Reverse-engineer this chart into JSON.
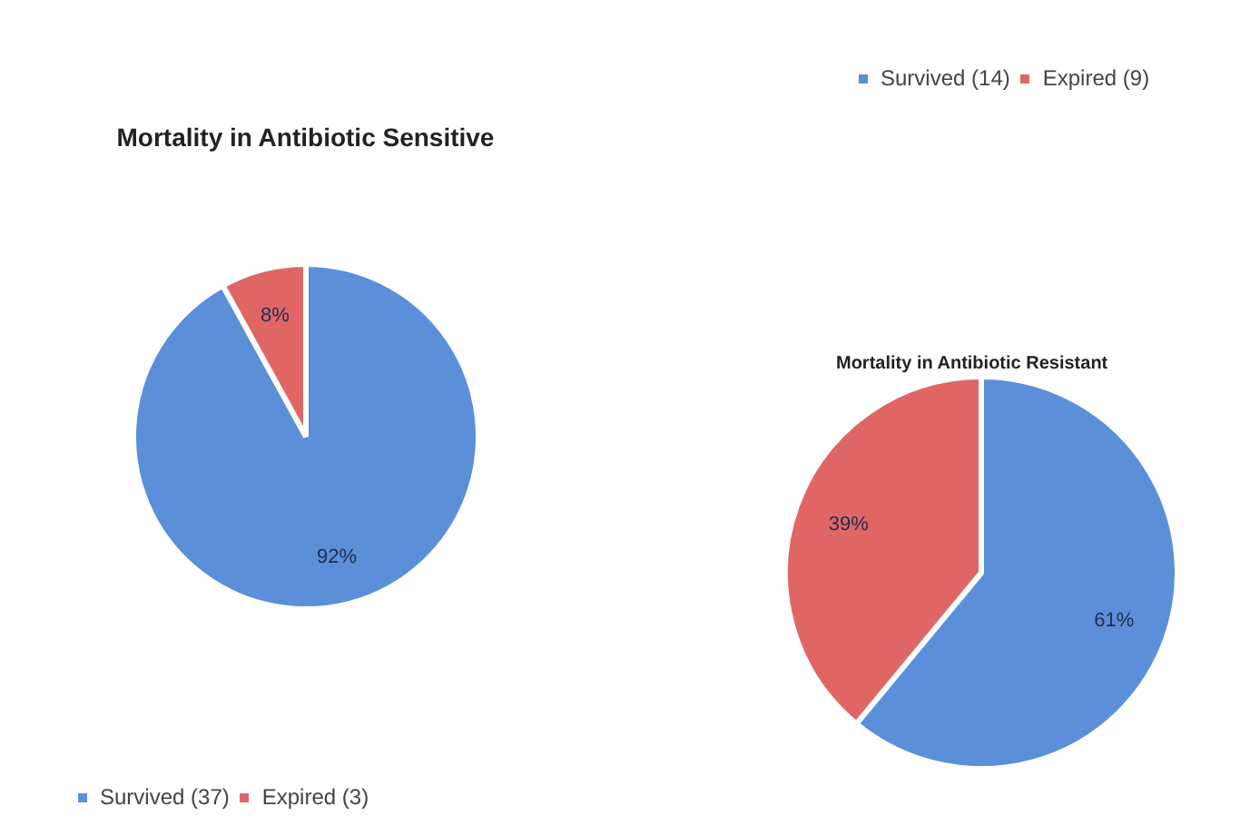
{
  "chart_data": [
    {
      "type": "pie",
      "title": "Mortality in Antibiotic Sensitive",
      "categories": [
        "Survived (37)",
        "Expired (3)"
      ],
      "values": [
        92,
        8
      ],
      "value_labels": [
        "92%",
        "8%"
      ],
      "colors": [
        "#5b8fd9",
        "#e06666"
      ],
      "legend": "bottom"
    },
    {
      "type": "pie",
      "title": "Mortality in Antibiotic Resistant",
      "categories": [
        "Survived (14)",
        "Expired (9)"
      ],
      "values": [
        61,
        39
      ],
      "value_labels": [
        "61%",
        "39%"
      ],
      "colors": [
        "#5b8fd9",
        "#e06666"
      ],
      "legend": "top"
    }
  ]
}
